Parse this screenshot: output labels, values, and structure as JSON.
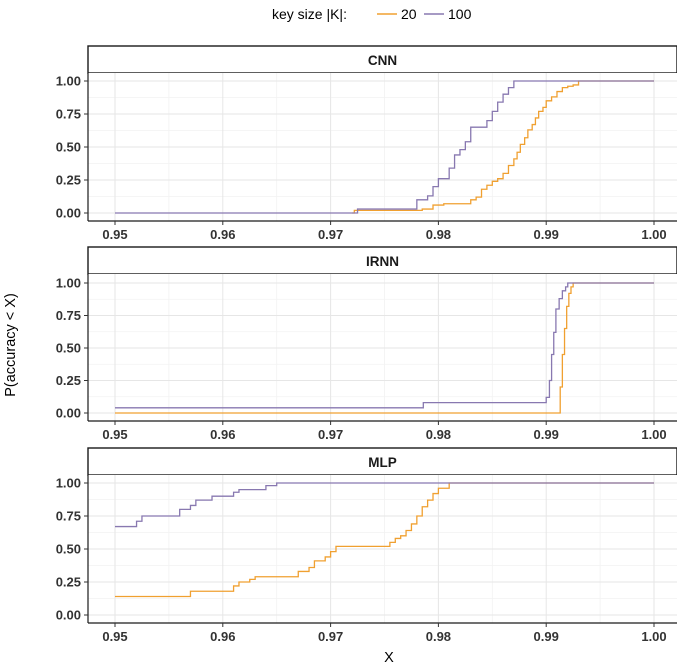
{
  "chart_data": {
    "type": "line",
    "step": true,
    "xlabel": "X",
    "ylabel": "P(accuracy < X)",
    "xlim": [
      0.95,
      1.0
    ],
    "ylim": [
      0,
      1
    ],
    "x_ticks": [
      "0.95",
      "0.96",
      "0.97",
      "0.98",
      "0.99",
      "1.00"
    ],
    "y_ticks": [
      "0.00",
      "0.25",
      "0.50",
      "0.75",
      "1.00"
    ],
    "legend": {
      "title": "key size |K|:",
      "position": "top",
      "items": [
        {
          "label": "20",
          "color": "#f0a030"
        },
        {
          "label": "100",
          "color": "#8878b0"
        }
      ]
    },
    "grid": true,
    "panels": [
      {
        "title": "CNN",
        "series": [
          {
            "name": "20",
            "color": "#f0a030",
            "points": [
              [
                0.972,
                0
              ],
              [
                0.9722,
                0.02
              ],
              [
                0.9785,
                0.03
              ],
              [
                0.9795,
                0.06
              ],
              [
                0.9805,
                0.07
              ],
              [
                0.9825,
                0.07
              ],
              [
                0.983,
                0.1
              ],
              [
                0.9835,
                0.12
              ],
              [
                0.984,
                0.18
              ],
              [
                0.9845,
                0.21
              ],
              [
                0.985,
                0.24
              ],
              [
                0.9855,
                0.26
              ],
              [
                0.986,
                0.3
              ],
              [
                0.9865,
                0.36
              ],
              [
                0.987,
                0.41
              ],
              [
                0.9873,
                0.46
              ],
              [
                0.9876,
                0.52
              ],
              [
                0.988,
                0.57
              ],
              [
                0.9883,
                0.63
              ],
              [
                0.9887,
                0.67
              ],
              [
                0.989,
                0.72
              ],
              [
                0.9893,
                0.77
              ],
              [
                0.9897,
                0.8
              ],
              [
                0.99,
                0.85
              ],
              [
                0.9905,
                0.88
              ],
              [
                0.991,
                0.92
              ],
              [
                0.9915,
                0.95
              ],
              [
                0.992,
                0.96
              ],
              [
                0.9925,
                0.97
              ],
              [
                0.993,
                1.0
              ],
              [
                1.0,
                1.0
              ]
            ]
          },
          {
            "name": "100",
            "color": "#8878b0",
            "points": [
              [
                0.95,
                0
              ],
              [
                0.9724,
                0
              ],
              [
                0.9725,
                0.03
              ],
              [
                0.9775,
                0.03
              ],
              [
                0.978,
                0.1
              ],
              [
                0.979,
                0.13
              ],
              [
                0.9795,
                0.2
              ],
              [
                0.98,
                0.26
              ],
              [
                0.981,
                0.34
              ],
              [
                0.9815,
                0.44
              ],
              [
                0.982,
                0.48
              ],
              [
                0.9825,
                0.54
              ],
              [
                0.983,
                0.65
              ],
              [
                0.984,
                0.65
              ],
              [
                0.9845,
                0.7
              ],
              [
                0.985,
                0.77
              ],
              [
                0.9855,
                0.84
              ],
              [
                0.986,
                0.9
              ],
              [
                0.9865,
                0.95
              ],
              [
                0.987,
                1.0
              ],
              [
                1.0,
                1.0
              ]
            ]
          }
        ]
      },
      {
        "title": "IRNN",
        "series": [
          {
            "name": "20",
            "color": "#f0a030",
            "points": [
              [
                0.95,
                0
              ],
              [
                0.991,
                0
              ],
              [
                0.9913,
                0.2
              ],
              [
                0.9915,
                0.45
              ],
              [
                0.9917,
                0.65
              ],
              [
                0.9919,
                0.82
              ],
              [
                0.9921,
                0.92
              ],
              [
                0.9923,
                0.97
              ],
              [
                0.9925,
                1.0
              ],
              [
                1.0,
                1.0
              ]
            ]
          },
          {
            "name": "100",
            "color": "#8878b0",
            "points": [
              [
                0.95,
                0.04
              ],
              [
                0.9785,
                0.04
              ],
              [
                0.9786,
                0.08
              ],
              [
                0.9895,
                0.08
              ],
              [
                0.99,
                0.12
              ],
              [
                0.9903,
                0.25
              ],
              [
                0.9905,
                0.45
              ],
              [
                0.9907,
                0.62
              ],
              [
                0.9909,
                0.8
              ],
              [
                0.9912,
                0.88
              ],
              [
                0.9915,
                0.94
              ],
              [
                0.9918,
                0.97
              ],
              [
                0.992,
                1.0
              ],
              [
                1.0,
                1.0
              ]
            ]
          }
        ]
      },
      {
        "title": "MLP",
        "series": [
          {
            "name": "20",
            "color": "#f0a030",
            "points": [
              [
                0.95,
                0.14
              ],
              [
                0.957,
                0.14
              ],
              [
                0.957,
                0.18
              ],
              [
                0.9605,
                0.18
              ],
              [
                0.961,
                0.22
              ],
              [
                0.9615,
                0.25
              ],
              [
                0.9625,
                0.27
              ],
              [
                0.963,
                0.29
              ],
              [
                0.9665,
                0.29
              ],
              [
                0.967,
                0.33
              ],
              [
                0.968,
                0.36
              ],
              [
                0.9685,
                0.41
              ],
              [
                0.9695,
                0.44
              ],
              [
                0.97,
                0.48
              ],
              [
                0.9705,
                0.52
              ],
              [
                0.975,
                0.52
              ],
              [
                0.9755,
                0.55
              ],
              [
                0.976,
                0.58
              ],
              [
                0.9765,
                0.6
              ],
              [
                0.977,
                0.64
              ],
              [
                0.9775,
                0.69
              ],
              [
                0.978,
                0.75
              ],
              [
                0.9785,
                0.82
              ],
              [
                0.979,
                0.87
              ],
              [
                0.9795,
                0.92
              ],
              [
                0.98,
                0.96
              ],
              [
                0.981,
                1.0
              ],
              [
                1.0,
                1.0
              ]
            ]
          },
          {
            "name": "100",
            "color": "#8878b0",
            "points": [
              [
                0.95,
                0.67
              ],
              [
                0.9515,
                0.67
              ],
              [
                0.952,
                0.71
              ],
              [
                0.9525,
                0.75
              ],
              [
                0.9555,
                0.75
              ],
              [
                0.956,
                0.8
              ],
              [
                0.957,
                0.83
              ],
              [
                0.9575,
                0.87
              ],
              [
                0.959,
                0.9
              ],
              [
                0.961,
                0.93
              ],
              [
                0.9615,
                0.95
              ],
              [
                0.9635,
                0.95
              ],
              [
                0.964,
                0.98
              ],
              [
                0.965,
                1.0
              ],
              [
                1.0,
                1.0
              ]
            ]
          }
        ]
      }
    ]
  }
}
